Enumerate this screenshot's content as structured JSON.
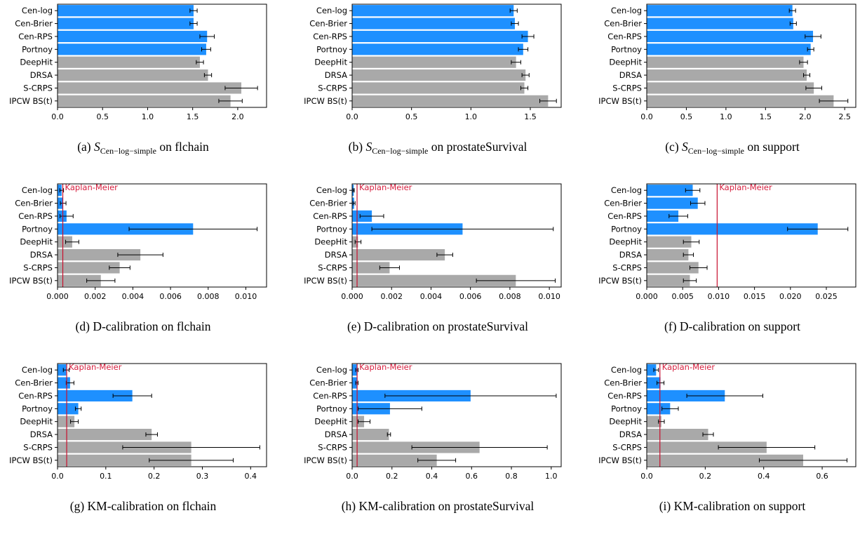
{
  "colors": {
    "blue": "#1e90ff",
    "gray": "#a9a9a9",
    "km_line": "#c8102e",
    "km_text": "#d6203f",
    "error": "#000000"
  },
  "chart_data": [
    {
      "type": "bar",
      "orientation": "horizontal",
      "categories": [
        "Cen-log",
        "Cen-Brier",
        "Cen-RPS",
        "Portnoy",
        "DeepHit",
        "DRSA",
        "S-CRPS",
        "IPCW BS(t)"
      ],
      "bar_colors": [
        "blue",
        "blue",
        "blue",
        "blue",
        "gray",
        "gray",
        "gray",
        "gray"
      ],
      "values": [
        1.51,
        1.51,
        1.66,
        1.65,
        1.58,
        1.67,
        2.04,
        1.92
      ],
      "errors": [
        0.04,
        0.04,
        0.08,
        0.05,
        0.04,
        0.04,
        0.18,
        0.13
      ],
      "xlim": [
        0,
        2.32
      ],
      "xticks": [
        0,
        0.5,
        1,
        1.5,
        2
      ],
      "xtick_labels": [
        "0.0",
        "0.5",
        "1.0",
        "1.5",
        "2.0"
      ],
      "km_line": null,
      "km_label": "",
      "caption": {
        "label": "(a)",
        "math_main": "S",
        "math_sub": "Cen−log−simple",
        "text": "on flchain"
      }
    },
    {
      "type": "bar",
      "orientation": "horizontal",
      "categories": [
        "Cen-log",
        "Cen-Brier",
        "Cen-RPS",
        "Portnoy",
        "DeepHit",
        "DRSA",
        "S-CRPS",
        "IPCW BS(t)"
      ],
      "bar_colors": [
        "blue",
        "blue",
        "blue",
        "blue",
        "gray",
        "gray",
        "gray",
        "gray"
      ],
      "values": [
        1.36,
        1.37,
        1.48,
        1.44,
        1.38,
        1.46,
        1.45,
        1.65
      ],
      "errors": [
        0.03,
        0.03,
        0.05,
        0.04,
        0.04,
        0.03,
        0.03,
        0.07
      ],
      "xlim": [
        0,
        1.76
      ],
      "xticks": [
        0,
        0.5,
        1,
        1.5
      ],
      "xtick_labels": [
        "0.0",
        "0.5",
        "1.0",
        "1.5"
      ],
      "km_line": null,
      "km_label": "",
      "caption": {
        "label": "(b)",
        "math_main": "S",
        "math_sub": "Cen−log−simple",
        "text": "on prostateSurvival"
      }
    },
    {
      "type": "bar",
      "orientation": "horizontal",
      "categories": [
        "Cen-log",
        "Cen-Brier",
        "Cen-RPS",
        "Portnoy",
        "DeepHit",
        "DRSA",
        "S-CRPS",
        "IPCW BS(t)"
      ],
      "bar_colors": [
        "blue",
        "blue",
        "blue",
        "blue",
        "gray",
        "gray",
        "gray",
        "gray"
      ],
      "values": [
        1.84,
        1.85,
        2.1,
        2.07,
        1.98,
        2.02,
        2.11,
        2.36
      ],
      "errors": [
        0.04,
        0.04,
        0.1,
        0.04,
        0.05,
        0.04,
        0.1,
        0.18
      ],
      "xlim": [
        0,
        2.64
      ],
      "xticks": [
        0,
        0.5,
        1,
        1.5,
        2,
        2.5
      ],
      "xtick_labels": [
        "0.0",
        "0.5",
        "1.0",
        "1.5",
        "2.0",
        "2.5"
      ],
      "km_line": null,
      "km_label": "",
      "caption": {
        "label": "(c)",
        "math_main": "S",
        "math_sub": "Cen−log−simple",
        "text": "on support"
      }
    },
    {
      "type": "bar",
      "orientation": "horizontal",
      "categories": [
        "Cen-log",
        "Cen-Brier",
        "Cen-RPS",
        "Portnoy",
        "DeepHit",
        "DRSA",
        "S-CRPS",
        "IPCW BS(t)"
      ],
      "bar_colors": [
        "blue",
        "blue",
        "blue",
        "blue",
        "gray",
        "gray",
        "gray",
        "gray"
      ],
      "values": [
        0.00022,
        0.0003,
        0.00048,
        0.0072,
        0.00078,
        0.0044,
        0.0033,
        0.0023
      ],
      "errors": [
        0.0001,
        0.00015,
        0.00035,
        0.0034,
        0.00035,
        0.0012,
        0.00055,
        0.00075
      ],
      "xlim": [
        0,
        0.0111
      ],
      "xticks": [
        0,
        0.002,
        0.004,
        0.006,
        0.008,
        0.01
      ],
      "xtick_labels": [
        "0.000",
        "0.002",
        "0.004",
        "0.006",
        "0.008",
        "0.010"
      ],
      "km_line": 0.00028,
      "km_label": "Kaplan-Meier",
      "caption": {
        "label": "(d)",
        "text": "D-calibration on flchain"
      }
    },
    {
      "type": "bar",
      "orientation": "horizontal",
      "categories": [
        "Cen-log",
        "Cen-Brier",
        "Cen-RPS",
        "Portnoy",
        "DeepHit",
        "DRSA",
        "S-CRPS",
        "IPCW BS(t)"
      ],
      "bar_colors": [
        "blue",
        "blue",
        "blue",
        "blue",
        "gray",
        "gray",
        "gray",
        "gray"
      ],
      "values": [
        8e-05,
        0.0001,
        0.001,
        0.0056,
        0.0003,
        0.0047,
        0.0019,
        0.0083
      ],
      "errors": [
        3e-05,
        5e-05,
        0.0006,
        0.0046,
        0.00015,
        0.0004,
        0.0005,
        0.002
      ],
      "xlim": [
        0,
        0.0106
      ],
      "xticks": [
        0,
        0.002,
        0.004,
        0.006,
        0.008,
        0.01
      ],
      "xtick_labels": [
        "0.000",
        "0.002",
        "0.004",
        "0.006",
        "0.008",
        "0.010"
      ],
      "km_line": 0.00025,
      "km_label": "Kaplan-Meier",
      "caption": {
        "label": "(e)",
        "text": "D-calibration on prostateSurvival"
      }
    },
    {
      "type": "bar",
      "orientation": "horizontal",
      "categories": [
        "Cen-log",
        "Cen-Brier",
        "Cen-RPS",
        "Portnoy",
        "DeepHit",
        "DRSA",
        "S-CRPS",
        "IPCW BS(t)"
      ],
      "bar_colors": [
        "blue",
        "blue",
        "blue",
        "blue",
        "gray",
        "gray",
        "gray",
        "gray"
      ],
      "values": [
        0.0064,
        0.0071,
        0.0044,
        0.0238,
        0.0062,
        0.0058,
        0.0072,
        0.006
      ],
      "errors": [
        0.001,
        0.001,
        0.0013,
        0.0042,
        0.0011,
        0.0007,
        0.0012,
        0.0009
      ],
      "xlim": [
        0,
        0.0291
      ],
      "xticks": [
        0,
        0.005,
        0.01,
        0.015,
        0.02,
        0.025
      ],
      "xtick_labels": [
        "0.000",
        "0.005",
        "0.010",
        "0.015",
        "0.020",
        "0.025"
      ],
      "km_line": 0.0098,
      "km_label": "Kaplan-Meier",
      "caption": {
        "label": "(f)",
        "text": "D-calibration on support"
      }
    },
    {
      "type": "bar",
      "orientation": "horizontal",
      "categories": [
        "Cen-log",
        "Cen-Brier",
        "Cen-RPS",
        "Portnoy",
        "DeepHit",
        "DRSA",
        "S-CRPS",
        "IPCW BS(t)"
      ],
      "bar_colors": [
        "blue",
        "blue",
        "blue",
        "blue",
        "gray",
        "gray",
        "gray",
        "gray"
      ],
      "values": [
        0.018,
        0.026,
        0.155,
        0.043,
        0.035,
        0.195,
        0.277,
        0.277
      ],
      "errors": [
        0.006,
        0.008,
        0.04,
        0.006,
        0.008,
        0.012,
        0.142,
        0.087
      ],
      "xlim": [
        0,
        0.433
      ],
      "xticks": [
        0,
        0.1,
        0.2,
        0.3,
        0.4
      ],
      "xtick_labels": [
        "0.0",
        "0.1",
        "0.2",
        "0.3",
        "0.4"
      ],
      "km_line": 0.019,
      "km_label": "Kaplan-Meier",
      "caption": {
        "label": "(g)",
        "text": "KM-calibration on flchain"
      }
    },
    {
      "type": "bar",
      "orientation": "horizontal",
      "categories": [
        "Cen-log",
        "Cen-Brier",
        "Cen-RPS",
        "Portnoy",
        "DeepHit",
        "DRSA",
        "S-CRPS",
        "IPCW BS(t)"
      ],
      "bar_colors": [
        "blue",
        "blue",
        "blue",
        "blue",
        "gray",
        "gray",
        "gray",
        "gray"
      ],
      "values": [
        0.024,
        0.024,
        0.595,
        0.19,
        0.06,
        0.185,
        0.64,
        0.425
      ],
      "errors": [
        0.006,
        0.006,
        0.43,
        0.16,
        0.03,
        0.008,
        0.34,
        0.095
      ],
      "xlim": [
        0,
        1.05
      ],
      "xticks": [
        0,
        0.2,
        0.4,
        0.6,
        0.8,
        1
      ],
      "xtick_labels": [
        "0.0",
        "0.2",
        "0.4",
        "0.6",
        "0.8",
        "1.0"
      ],
      "km_line": 0.025,
      "km_label": "Kaplan-Meier",
      "caption": {
        "label": "(h)",
        "text": "KM-calibration on prostateSurvival"
      }
    },
    {
      "type": "bar",
      "orientation": "horizontal",
      "categories": [
        "Cen-log",
        "Cen-Brier",
        "Cen-RPS",
        "Portnoy",
        "DeepHit",
        "DRSA",
        "S-CRPS",
        "IPCW BS(t)"
      ],
      "bar_colors": [
        "blue",
        "blue",
        "blue",
        "blue",
        "gray",
        "gray",
        "gray",
        "gray"
      ],
      "values": [
        0.032,
        0.047,
        0.267,
        0.08,
        0.05,
        0.21,
        0.41,
        0.535
      ],
      "errors": [
        0.008,
        0.012,
        0.13,
        0.028,
        0.01,
        0.018,
        0.165,
        0.15
      ],
      "xlim": [
        0,
        0.715
      ],
      "xticks": [
        0,
        0.2,
        0.4,
        0.6
      ],
      "xtick_labels": [
        "0.0",
        "0.2",
        "0.4",
        "0.6"
      ],
      "km_line": 0.045,
      "km_label": "Kaplan-Meier",
      "caption": {
        "label": "(i)",
        "text": "KM-calibration on support"
      }
    }
  ]
}
